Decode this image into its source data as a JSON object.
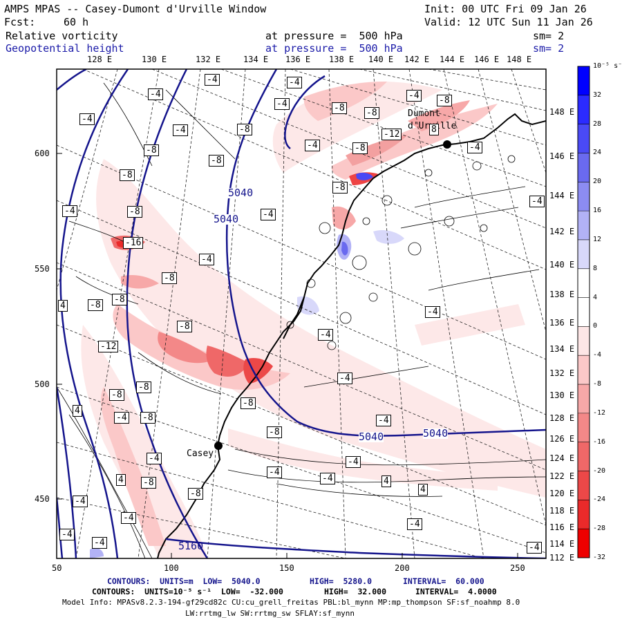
{
  "header": {
    "title": "AMPS MPAS -- Casey-Dumont d'Urville Window",
    "init": "Init: 00 UTC Fri 09 Jan 26",
    "fcst_label": "Fcst:",
    "fcst_value": "60 h",
    "valid": "Valid: 12 UTC Sun 11 Jan 26",
    "field1_name": "Relative vorticity",
    "field1_level": "at pressure =  500 hPa",
    "field1_sm": "sm= 2",
    "field2_name": "Geopotential height",
    "field2_level": "at pressure =  500 hPa",
    "field2_sm": "sm= 2"
  },
  "top_lon_labels": [
    "128 E",
    "130 E",
    "132 E",
    "134 E",
    "136 E",
    "138 E",
    "140 E",
    "142 E",
    "144 E",
    "146 E",
    "148 E"
  ],
  "right_lat_labels": [
    "148 E",
    "146 E",
    "144 E",
    "142 E",
    "140 E",
    "138 E",
    "136 E",
    "134 E",
    "132 E",
    "130 E",
    "128 E",
    "126 E",
    "124 E",
    "122 E",
    "120 E",
    "118 E",
    "116 E",
    "114 E",
    "112 E"
  ],
  "x_axis_ticks": [
    "50",
    "100",
    "150",
    "200",
    "250"
  ],
  "y_axis_ticks": [
    "600",
    "550",
    "500",
    "450"
  ],
  "colorbar": {
    "unit": "10⁻⁵ s⁻¹",
    "labels": [
      "32",
      "28",
      "24",
      "20",
      "16",
      "12",
      "8",
      "4",
      "0",
      "-4",
      "-8",
      "-12",
      "-16",
      "-20",
      "-24",
      "-28",
      "-32"
    ],
    "colors": [
      "#0000ff",
      "#2b2bff",
      "#4a4af5",
      "#6a6aef",
      "#8c8cf2",
      "#b2b2f6",
      "#d8d8fa",
      "#ffffff",
      "#ffffff",
      "#fde6e6",
      "#fbc8c8",
      "#f7a8a8",
      "#f38888",
      "#ef6868",
      "#ec4848",
      "#ea2a2a",
      "#ee0000"
    ]
  },
  "place_labels": {
    "dumont": "Dumont",
    "durville": "d'Urville",
    "casey": "Casey"
  },
  "height_labels": [
    "5040",
    "5040",
    "5040",
    "5040",
    "5160"
  ],
  "vorticity_labels": [
    "-4",
    "-8",
    "-12",
    "-16",
    "4",
    "8"
  ],
  "footer": {
    "line1_a": "CONTOURS:  UNITS=m  LOW=  5040.0",
    "line1_b": "HIGH=  5280.0",
    "line1_c": "INTERVAL=  60.000",
    "line2_a": "CONTOURS:  UNITS=10⁻⁵ s⁻¹  LOW=  -32.000",
    "line2_b": "HIGH=  32.000",
    "line2_c": "INTERVAL=  4.0000",
    "line3": "Model Info: MPASv8.2.3-194-gf29cd82c CU:cu_grell_freitas PBL:bl_mynn MP:mp_thompson SF:sf_noahmp 8.0",
    "line4": "LW:rrtmg_lw SW:rrtmg_sw SFLAY:sf_mynn"
  }
}
